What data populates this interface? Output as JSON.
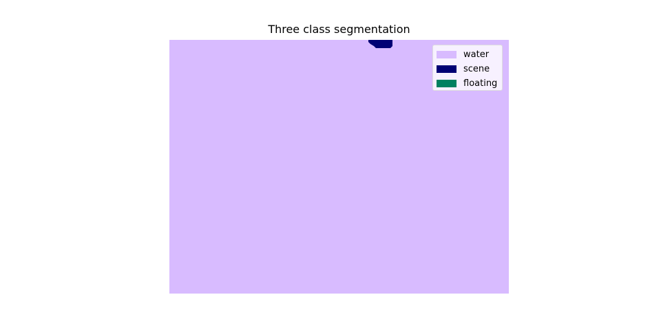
{
  "figure": {
    "title": "Three class segmentation"
  },
  "legend": {
    "items": [
      {
        "label": "water",
        "color": "#d8bbff"
      },
      {
        "label": "scene",
        "color": "#000074"
      },
      {
        "label": "floating",
        "color": "#008060"
      }
    ]
  },
  "colors": {
    "water": "#d8bbff",
    "scene": "#000074",
    "floating": "#008060",
    "background": "#ffffff"
  }
}
